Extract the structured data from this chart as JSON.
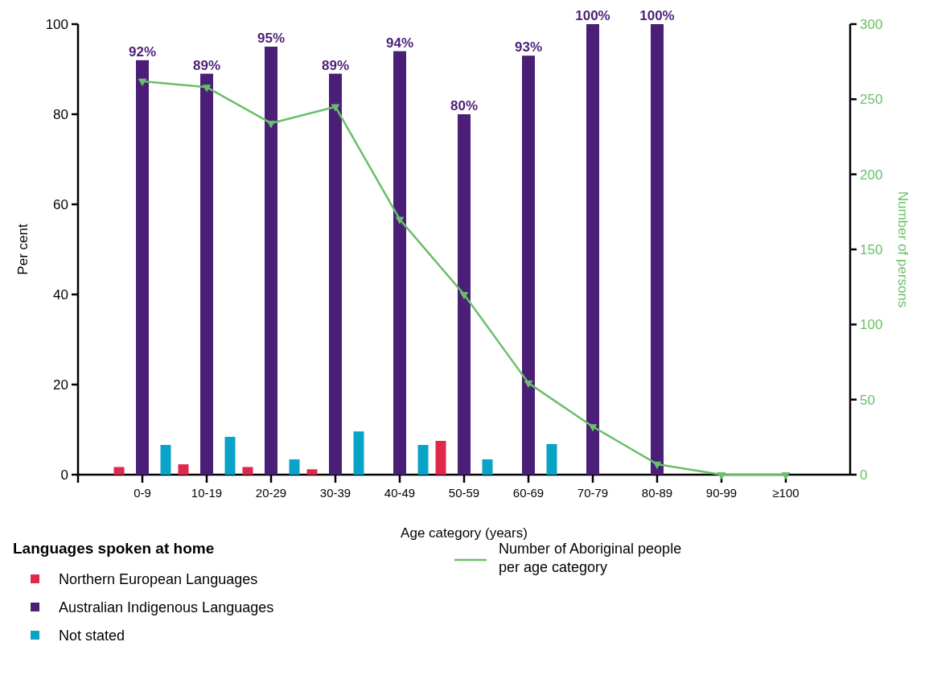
{
  "chart_data": {
    "type": "bar",
    "xlabel": "Age category (years)",
    "ylabel": "Per cent",
    "y2label": "Number of persons",
    "legend_title": "Languages spoken at home",
    "legend": "bottom",
    "categories": [
      "0-9",
      "10-19",
      "20-29",
      "30-39",
      "40-49",
      "50-59",
      "60-69",
      "70-79",
      "80-89",
      "90-99",
      "≥100"
    ],
    "series": [
      {
        "name": "Northern European Languages",
        "color": "#e0294a",
        "values": [
          1.7,
          2.3,
          1.7,
          1.2,
          null,
          7.5,
          null,
          null,
          null,
          null,
          null
        ]
      },
      {
        "name": "Australian Indigenous Languages",
        "color": "#4b1e78",
        "values": [
          92,
          89,
          95,
          89,
          94,
          80,
          93,
          100,
          100,
          null,
          null
        ],
        "value_labels": [
          "92%",
          "89%",
          "95%",
          "89%",
          "94%",
          "80%",
          "93%",
          "100%",
          "100%",
          null,
          null
        ]
      },
      {
        "name": "Not stated",
        "color": "#0aa3c8",
        "values": [
          6.6,
          8.4,
          3.4,
          9.6,
          6.6,
          3.4,
          6.8,
          null,
          null,
          null,
          null
        ]
      },
      {
        "name": "Number of Aboriginal people per age category",
        "type": "line",
        "axis": "y2",
        "color": "#6abf69",
        "marker": "triangle",
        "values": [
          262,
          258,
          234,
          245,
          170,
          120,
          61,
          32,
          7,
          0,
          0
        ]
      }
    ],
    "ylim": [
      0,
      100
    ],
    "yticks": [
      0,
      20,
      40,
      60,
      80,
      100
    ],
    "y2lim": [
      0,
      300
    ],
    "y2ticks": [
      0,
      50,
      100,
      150,
      200,
      250,
      300
    ],
    "grid": false
  }
}
